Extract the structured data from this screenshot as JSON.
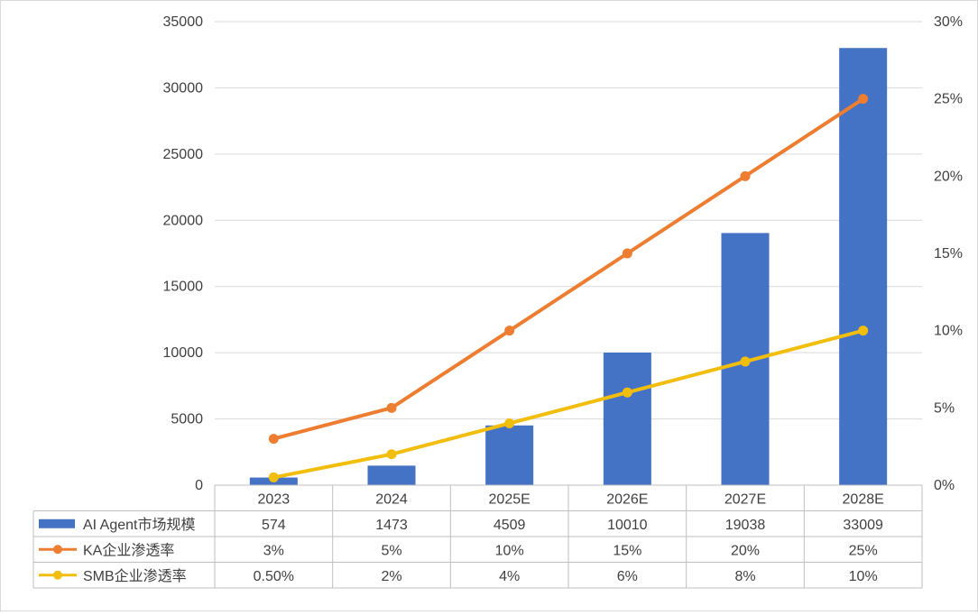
{
  "chart_data": {
    "type": "bar",
    "categories": [
      "2023",
      "2024",
      "2025E",
      "2026E",
      "2027E",
      "2028E"
    ],
    "series": [
      {
        "name": "AI Agent市场规模",
        "type": "bar",
        "axis": "left",
        "color": "#4472C4",
        "values": [
          574,
          1473,
          4509,
          10010,
          19038,
          33009
        ],
        "labels": [
          "574",
          "1473",
          "4509",
          "10010",
          "19038",
          "33009"
        ]
      },
      {
        "name": "KA企业渗透率",
        "type": "line",
        "axis": "right",
        "color": "#ED7D31",
        "values": [
          0.03,
          0.05,
          0.1,
          0.15,
          0.2,
          0.25
        ],
        "labels": [
          "3%",
          "5%",
          "10%",
          "15%",
          "20%",
          "25%"
        ]
      },
      {
        "name": "SMB企业渗透率",
        "type": "line",
        "axis": "right",
        "color": "#F2BE0E",
        "values": [
          0.005,
          0.02,
          0.04,
          0.06,
          0.08,
          0.1
        ],
        "labels": [
          "0.50%",
          "2%",
          "4%",
          "6%",
          "8%",
          "10%"
        ]
      }
    ],
    "y_left": {
      "range": [
        0,
        35000
      ],
      "ticks": [
        "0",
        "5000",
        "10000",
        "15000",
        "20000",
        "25000",
        "30000",
        "35000"
      ]
    },
    "y_right": {
      "range": [
        0,
        0.3
      ],
      "ticks": [
        "0%",
        "5%",
        "10%",
        "15%",
        "20%",
        "25%",
        "30%"
      ]
    },
    "grid": true,
    "legend": "data-table",
    "title": "",
    "xlabel": "",
    "ylabel": ""
  }
}
